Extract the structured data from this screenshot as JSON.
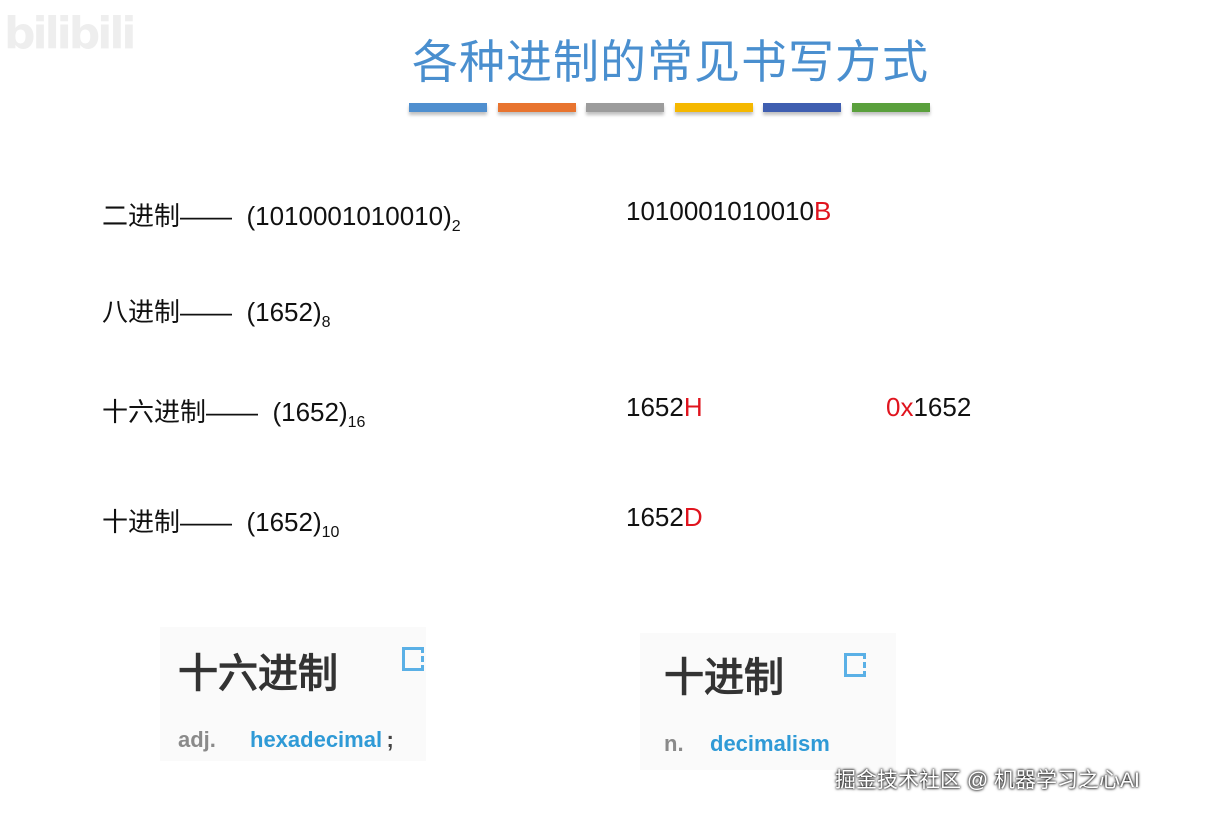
{
  "watermark_logo": "bilibili",
  "title": "各种进制的常见书写方式",
  "title_bar_colors": [
    "#4f8fcf",
    "#e8742f",
    "#9c9c9c",
    "#f5b800",
    "#3f5eb0",
    "#5aa03c"
  ],
  "rows": [
    {
      "label": "二进制——",
      "value": "(1010001010010)",
      "base": "2",
      "alt1": "1010001010010",
      "alt1_suffix": "B"
    },
    {
      "label": "八进制——",
      "value": "(1652)",
      "base": "8"
    },
    {
      "label": "十六进制——",
      "value": "(1652)",
      "base": "16",
      "alt1": "1652",
      "alt1_suffix": "H",
      "alt2_prefix": "0x",
      "alt2": "1652"
    },
    {
      "label": "十进制——",
      "value": "(1652)",
      "base": "10",
      "alt1": "1652",
      "alt1_suffix": "D"
    }
  ],
  "cards": [
    {
      "term": "十六进制",
      "pos": "adj.",
      "definition": "hexadecimal",
      "trail": ";"
    },
    {
      "term": "十进制",
      "pos": "n.",
      "definition": "decimalism"
    }
  ],
  "accent_red": "#e0141e",
  "watermark": "掘金技术社区 @ 机器学习之心AI"
}
